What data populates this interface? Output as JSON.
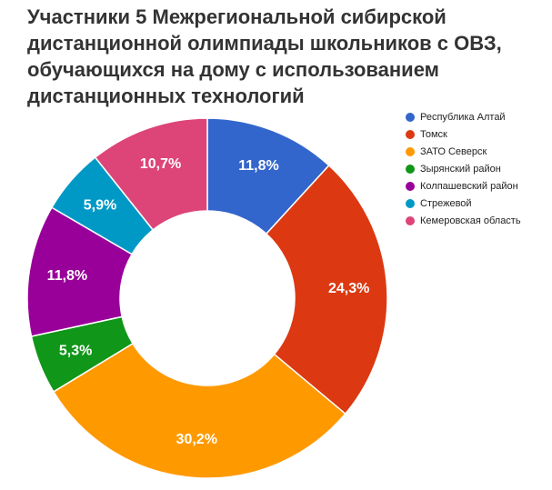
{
  "chart_data": {
    "type": "pie",
    "title": "Участники 5 Межрегиональной сибирской дистанционной олимпиады школьников с ОВЗ, обучающихся на дому с использованием дистанционных технологий",
    "categories": [
      "Республика Алтай",
      "Томск",
      "ЗАТО Северск",
      "Зырянский район",
      "Колпашевский район",
      "Стрежевой",
      "Кемеровская область"
    ],
    "values": [
      11.8,
      24.3,
      30.2,
      5.3,
      11.8,
      5.9,
      10.7
    ],
    "labels": [
      "11,8%",
      "24,3%",
      "30,2%",
      "5,3%",
      "11,8%",
      "5,9%",
      "10,7%"
    ],
    "colors": [
      "#3366cc",
      "#dc3912",
      "#ff9900",
      "#109618",
      "#990099",
      "#0099c6",
      "#dd4477"
    ],
    "donut": true,
    "legend_position": "right"
  }
}
